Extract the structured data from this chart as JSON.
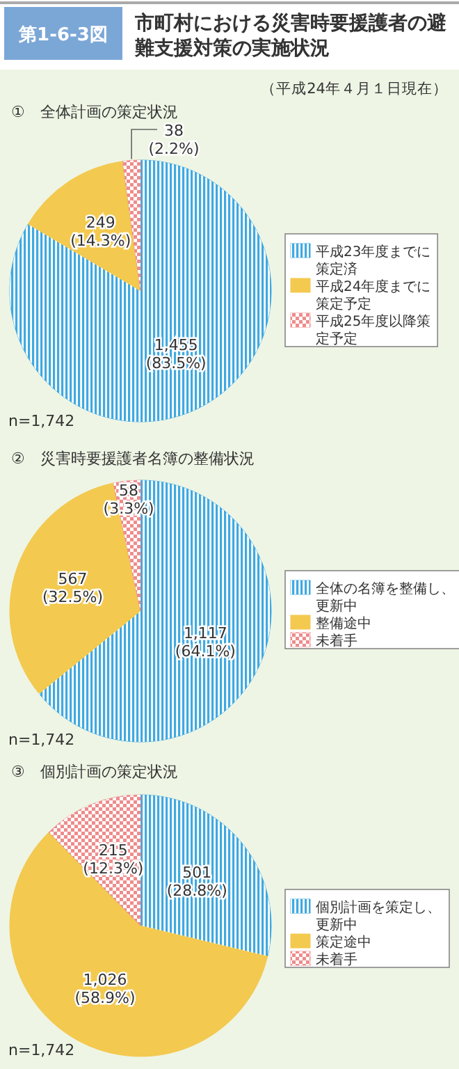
{
  "chart_data": [
    {
      "type": "pie",
      "title": "市町村における災害時要援護者の避難支援対策の実施状況",
      "subtitle": "①　全体計画の策定状況",
      "categories": [
        "平成23年度までに策定済",
        "平成24年度までに策定予定",
        "平成25年度以降策定予定"
      ],
      "values": [
        1455,
        249,
        38
      ],
      "value_labels": [
        "1,455 (83.5%)",
        "249 (14.3%)",
        "38 (2.2%)"
      ],
      "colors": [
        "#3fa9e0",
        "#f3c94f",
        "#ee8c8c"
      ],
      "legend": "right",
      "annotations": [
        "第1-6-3図",
        "（平成24年４月１日現在）",
        "n=1,742"
      ]
    },
    {
      "type": "pie",
      "title": "②　災害時要援護者名簿の整備状況",
      "categories": [
        "全体の名簿を整備し、更新中",
        "整備途中",
        "未着手"
      ],
      "values": [
        1117,
        567,
        58
      ],
      "value_labels": [
        "1,117 (64.1%)",
        "567 (32.5%)",
        "58 (3.3%)"
      ],
      "colors": [
        "#3fa9e0",
        "#f3c94f",
        "#ee8c8c"
      ],
      "legend": "right",
      "annotations": [
        "n=1,742"
      ]
    },
    {
      "type": "pie",
      "title": "③　個別計画の策定状況",
      "categories": [
        "個別計画を策定し、更新中",
        "策定途中",
        "未着手"
      ],
      "values": [
        501,
        1026,
        215
      ],
      "value_labels": [
        "501 (28.8%)",
        "1,026 (58.9%)",
        "215 (12.3%)"
      ],
      "colors": [
        "#3fa9e0",
        "#f3c94f",
        "#ee8c8c"
      ],
      "legend": "right",
      "annotations": [
        "n=1,742"
      ]
    }
  ]
}
